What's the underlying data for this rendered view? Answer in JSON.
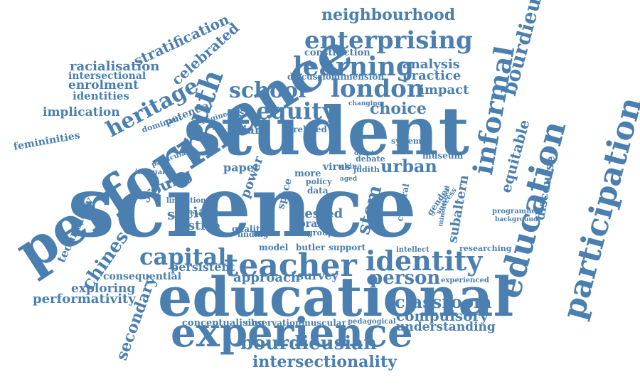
{
  "color": "#4a7fb0",
  "words": [
    "science",
    "student",
    "performance",
    "educational",
    "experience",
    "teacher",
    "participation",
    "education",
    "enterprising",
    "learning",
    "london",
    "school",
    "equity",
    "youth",
    "identity",
    "capital",
    "informal",
    "bourdieu",
    "neighbourhood",
    "choice",
    "heritage",
    "stratification",
    "celebrated",
    "racialisation",
    "intersectional",
    "enrolment",
    "identities",
    "implication",
    "femininities",
    "urban",
    "person",
    "classroom",
    "compulsory",
    "understanding",
    "bourdieusian",
    "intersectionality",
    "secondary",
    "chinese",
    "technology",
    "exploring",
    "performativity",
    "consequential",
    "persistent",
    "approach",
    "survey",
    "analysis",
    "practice",
    "impact",
    "equitable",
    "discourse",
    "subaltern",
    "social",
    "justice",
    "young",
    "tested",
    "stem",
    "praxis",
    "virus",
    "construction",
    "cultural",
    "museum",
    "gender",
    "success",
    "minoritised",
    "programme",
    "background",
    "researching",
    "experienced",
    "intellect",
    "pedagogical",
    "conceptualising",
    "observation",
    "muscular",
    "support",
    "butler",
    "model",
    "dominant",
    "inequality",
    "particular",
    "potential",
    "engineering",
    "mobility",
    "asian",
    "paper",
    "power",
    "space",
    "more",
    "policy",
    "data",
    "group",
    "quality",
    "finding",
    "system",
    "debate",
    "judith",
    "china",
    "aged",
    "related",
    "discussion",
    "dimension",
    "changing",
    "limitation",
    "research",
    "debate"
  ]
}
